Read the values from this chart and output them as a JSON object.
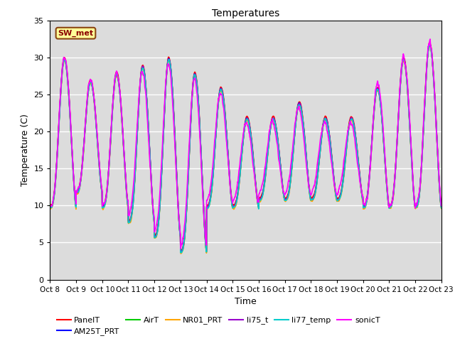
{
  "title": "Temperatures",
  "xlabel": "Time",
  "ylabel": "Temperature (C)",
  "ylim": [
    0,
    35
  ],
  "annotation_text": "SW_met",
  "annotation_facecolor": "#FFFF99",
  "annotation_edgecolor": "#8B4513",
  "annotation_textcolor": "#8B0000",
  "background_color": "#DCDCDC",
  "series_names": [
    "PanelT",
    "AM25T_PRT",
    "AirT",
    "NR01_PRT",
    "li75_t",
    "li77_temp",
    "sonicT"
  ],
  "series_colors": [
    "#FF0000",
    "#0000FF",
    "#00CC00",
    "#FFA500",
    "#9900CC",
    "#00CCCC",
    "#FF00FF"
  ],
  "series_lw": [
    1.2,
    1.2,
    1.2,
    1.2,
    1.2,
    1.2,
    1.2
  ],
  "xtick_labels": [
    "Oct 8",
    "Oct 9",
    "Oct 10",
    "Oct 11",
    "Oct 12",
    "Oct 13",
    "Oct 14",
    "Oct 15",
    "Oct 16",
    "Oct 17",
    "Oct 18",
    "Oct 19",
    "Oct 20",
    "Oct 21",
    "Oct 22",
    "Oct 23"
  ],
  "ytick_values": [
    0,
    5,
    10,
    15,
    20,
    25,
    30,
    35
  ],
  "n_days": 15,
  "pts_per_day": 144,
  "legend_ncol_row1": 6,
  "figsize": [
    6.4,
    4.8
  ],
  "dpi": 100
}
